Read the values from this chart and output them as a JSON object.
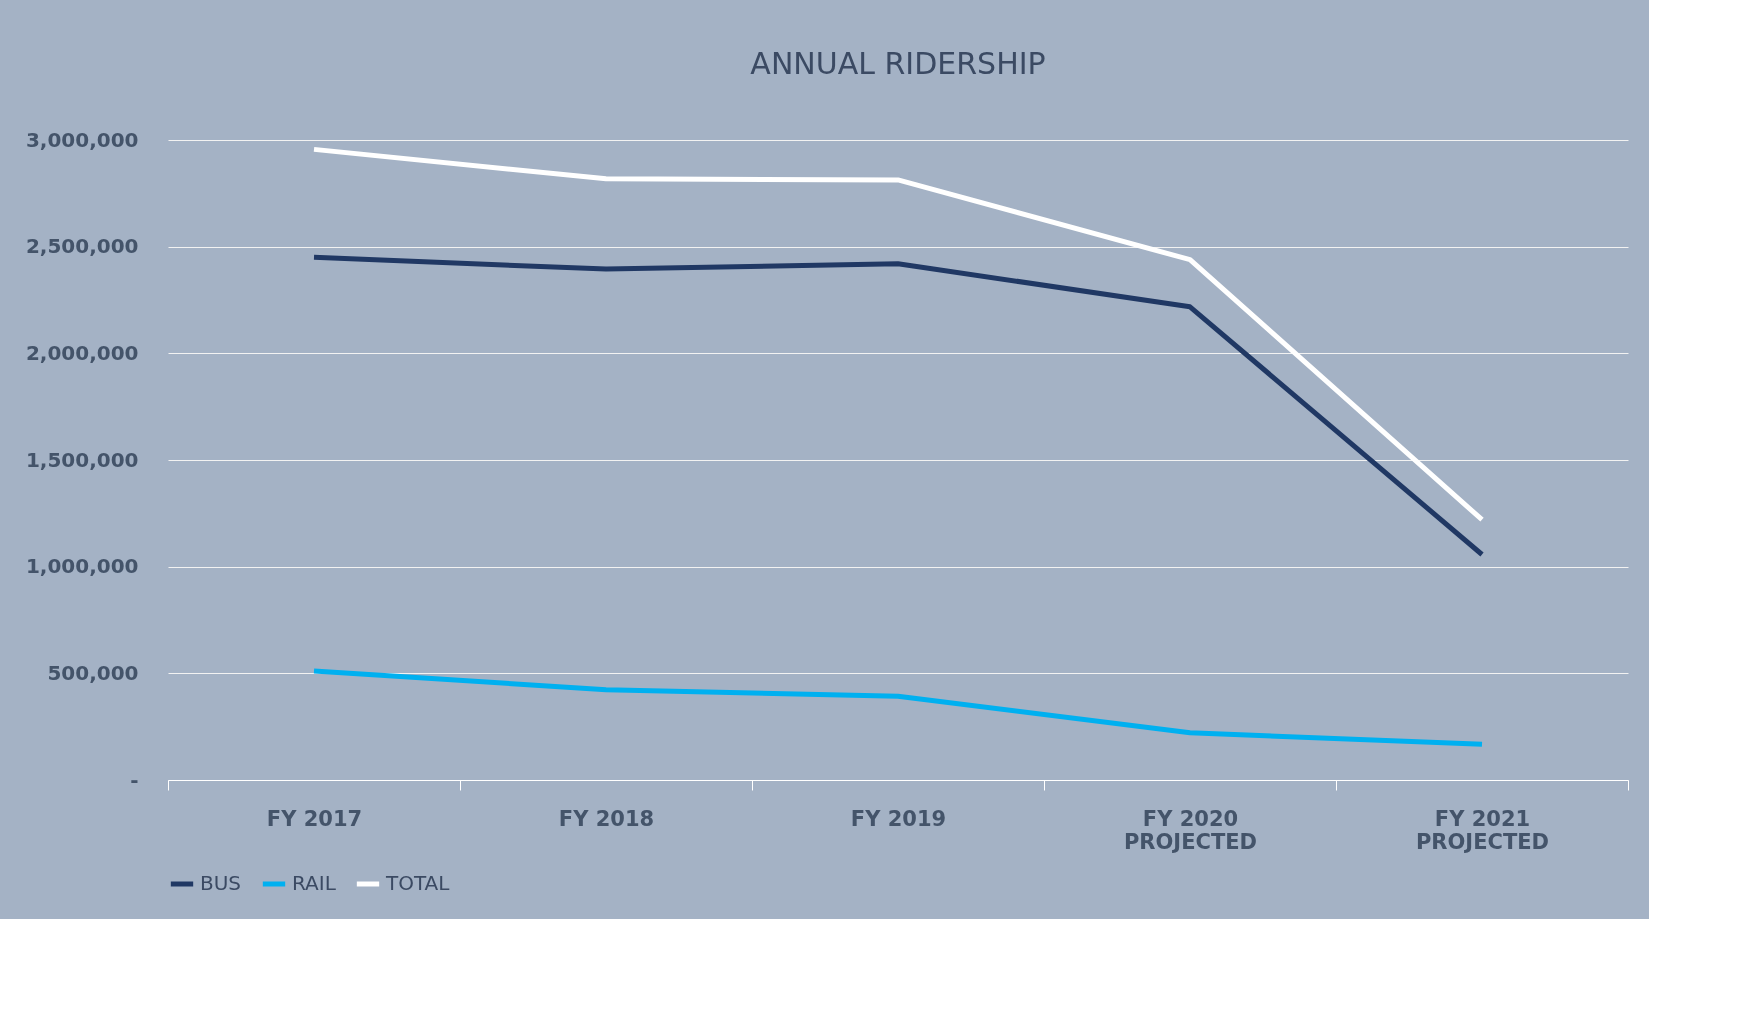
{
  "chart_data": {
    "type": "line",
    "title": "ANNUAL RIDERSHIP",
    "categories": [
      "FY 2017",
      "FY 2018",
      "FY 2019",
      "FY 2020\nPROJECTED",
      "FY 2021\nPROJECTED"
    ],
    "series": [
      {
        "name": "BUS",
        "color": "#203864",
        "values": [
          2450000,
          2395000,
          2420000,
          2218000,
          1057000
        ]
      },
      {
        "name": "RAIL",
        "color": "#00b0f0",
        "values": [
          511000,
          423000,
          393000,
          221000,
          167000
        ]
      },
      {
        "name": "TOTAL",
        "color": "#ffffff",
        "values": [
          2956000,
          2818000,
          2813000,
          2439000,
          1220000
        ]
      }
    ],
    "ylim": [
      0,
      3000000
    ],
    "yticks": [
      {
        "value": 0,
        "label": "-"
      },
      {
        "value": 500000,
        "label": "500,000"
      },
      {
        "value": 1000000,
        "label": "1,000,000"
      },
      {
        "value": 1500000,
        "label": "1,500,000"
      },
      {
        "value": 2000000,
        "label": "2,000,000"
      },
      {
        "value": 2500000,
        "label": "2,500,000"
      },
      {
        "value": 3000000,
        "label": "3,000,000"
      }
    ],
    "grid": "y",
    "legend": "bottom",
    "marker": "none",
    "line_style": "solid"
  }
}
